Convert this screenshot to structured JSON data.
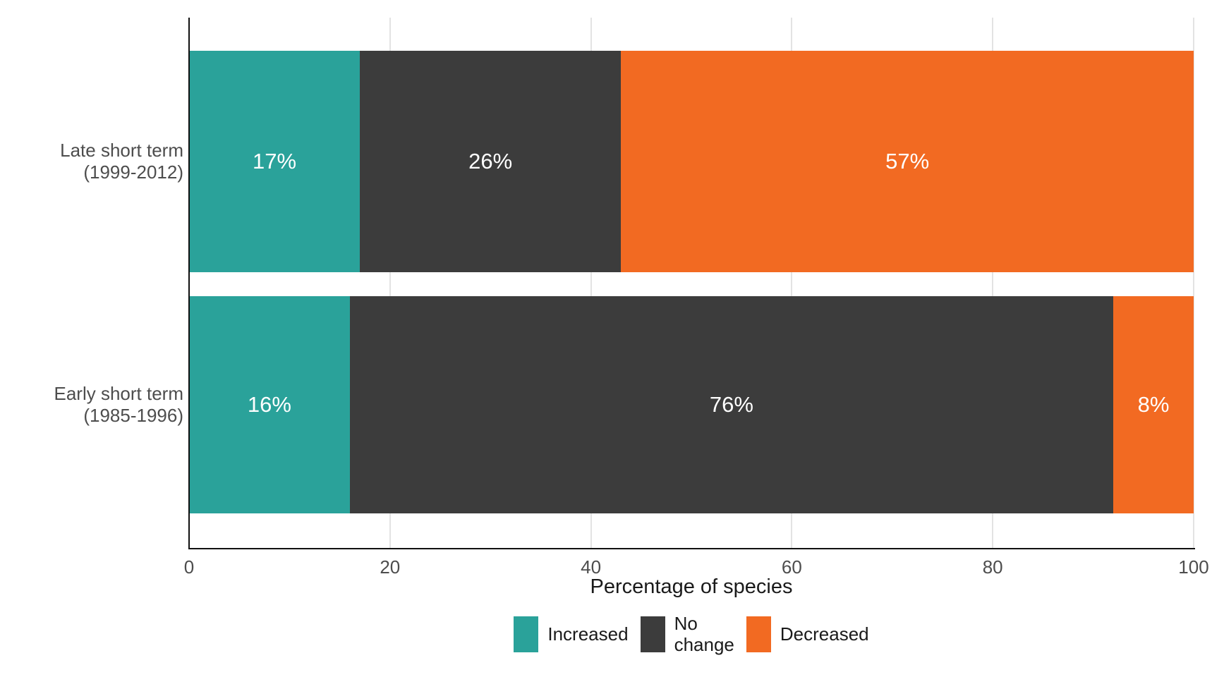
{
  "chart_data": {
    "type": "bar",
    "orientation": "horizontal",
    "stacked": true,
    "title": "",
    "xlabel": "Percentage of species",
    "xlim": [
      0,
      100
    ],
    "xticks": [
      0,
      20,
      40,
      60,
      80,
      100
    ],
    "grid": "vertical major gridlines",
    "legend_position": "bottom",
    "categories": [
      "Late short term (1999-2012)",
      "Early short term (1985-1996)"
    ],
    "category_label_lines": [
      [
        "Late short term",
        "(1999-2012)"
      ],
      [
        "Early short term",
        "(1985-1996)"
      ]
    ],
    "series": [
      {
        "name": "Increased",
        "color": "#2AA29A",
        "values": [
          17,
          16
        ]
      },
      {
        "name": "No change",
        "color": "#3C3C3C",
        "values": [
          26,
          76
        ]
      },
      {
        "name": "Decreased",
        "color": "#F26A22",
        "values": [
          57,
          8
        ]
      }
    ],
    "bar_labels": [
      [
        "17%",
        "26%",
        "57%"
      ],
      [
        "16%",
        "76%",
        "8%"
      ]
    ],
    "legend_label_lines": [
      [
        "Increased"
      ],
      [
        "No",
        "change"
      ],
      [
        "Decreased"
      ]
    ],
    "colors": {
      "increased": "#2AA29A",
      "no_change": "#3C3C3C",
      "decreased": "#F26A22",
      "axis_text": "#4D4D4D",
      "axis_line": "#111111",
      "gridline": "#E3E3E3",
      "bar_label_text": "#FFFFFF"
    }
  }
}
